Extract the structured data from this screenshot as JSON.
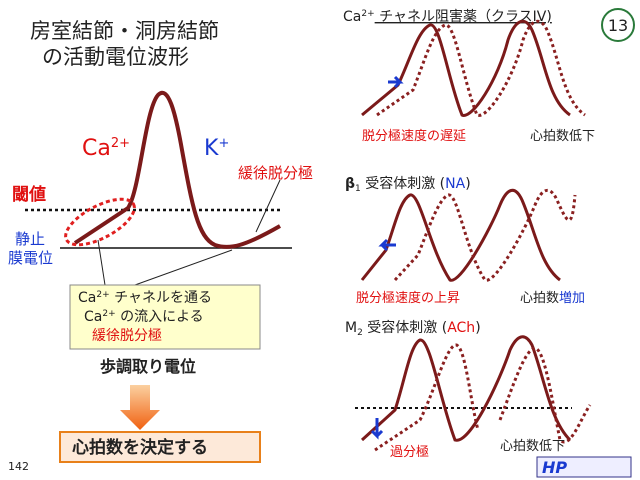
{
  "title": [
    "房室結節・洞房結節",
    "の活動電位波形"
  ],
  "main": {
    "ca": {
      "base": "Ca",
      "sup": "2+"
    },
    "k": {
      "base": "K",
      "sup": "+"
    },
    "slow": "緩徐脱分極",
    "threshold": "閾値",
    "resting": [
      "静止",
      "膜電位"
    ]
  },
  "callout": {
    "line1": {
      "base": "Ca",
      "sup": "2+",
      "rest": " チャネルを通る"
    },
    "line2": {
      "base": "Ca",
      "sup": "2+",
      "rest": " の流入による"
    },
    "line3": "緩徐脱分極"
  },
  "pacemaker": "歩調取り電位",
  "result": "心拍数を決定する",
  "page": "142",
  "slide": "13",
  "panels": [
    {
      "title": {
        "base": "Ca",
        "sup": "2+",
        "rest": " チャネル阻害薬（クラスIV)"
      },
      "left": "脱分極速度の遅延",
      "right": [
        "心拍数",
        "低下"
      ]
    },
    {
      "title": {
        "base": "β",
        "sub": "1",
        "rest": " 受容体刺激 (",
        "agent": "NA",
        "end": ")"
      },
      "left": "脱分極速度の上昇",
      "right": [
        "心拍数",
        "増加"
      ]
    },
    {
      "title": {
        "base": "M",
        "sub": "2",
        "rest": " 受容体刺激 (",
        "agent": "ACh",
        "end": ")"
      },
      "left": "過分極",
      "right": [
        "心拍数",
        "低下"
      ]
    }
  ],
  "logo": "HP"
}
